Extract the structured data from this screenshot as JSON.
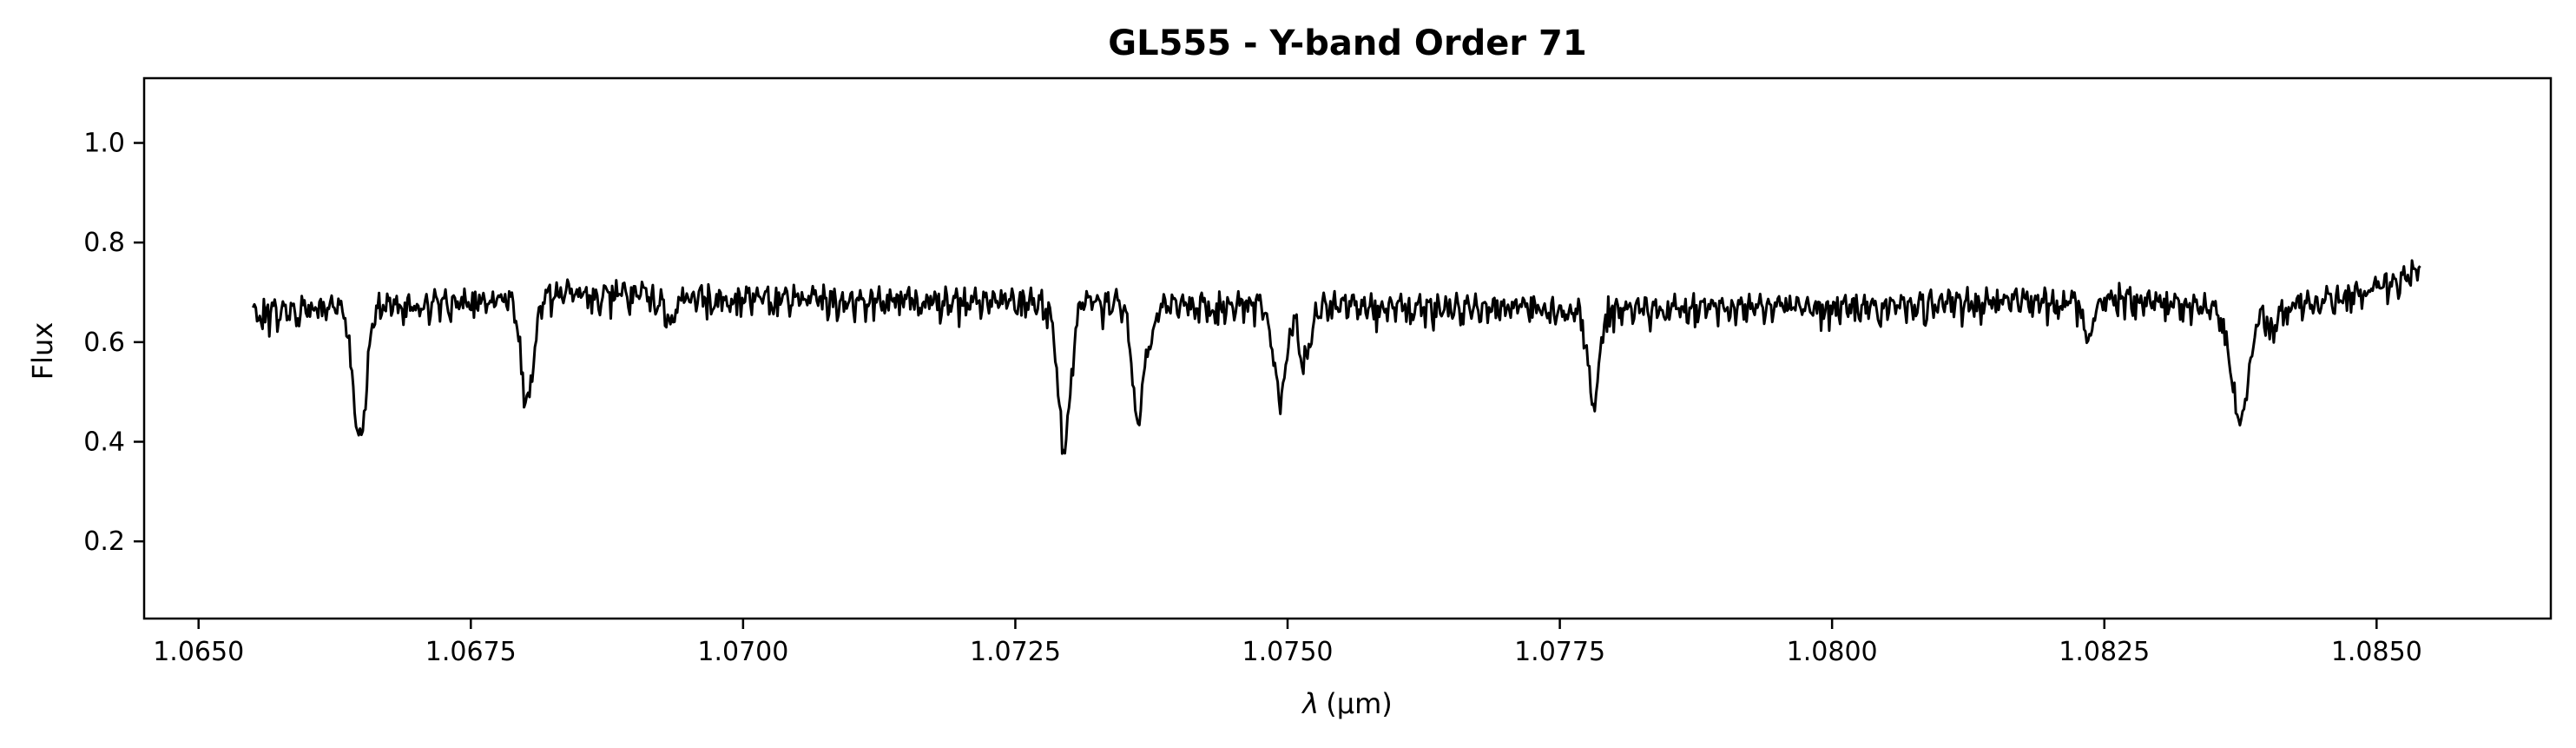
{
  "chart_data": {
    "type": "line",
    "title": "GL555 - Y-band Order 71",
    "xlabel_symbol": "λ",
    "xlabel_unit": "(μm)",
    "ylabel": "Flux",
    "xlim": [
      1.0645,
      1.0866
    ],
    "ylim": [
      0.045,
      1.13
    ],
    "xticks": [
      1.065,
      1.0675,
      1.07,
      1.0725,
      1.075,
      1.0775,
      1.08,
      1.0825,
      1.085
    ],
    "xtick_labels": [
      "1.0650",
      "1.0675",
      "1.0700",
      "1.0725",
      "1.0750",
      "1.0775",
      "1.0800",
      "1.0825",
      "1.0850"
    ],
    "yticks": [
      0.2,
      0.4,
      0.6,
      0.8,
      1.0
    ],
    "ytick_labels": [
      "0.2",
      "0.4",
      "0.6",
      "0.8",
      "1.0"
    ],
    "grid": false,
    "line_color": "#000000",
    "series": [
      {
        "x_range": [
          1.0655,
          1.0854
        ],
        "continuum_points": [
          [
            1.0655,
            0.67
          ],
          [
            1.0665,
            0.68
          ],
          [
            1.0675,
            0.69
          ],
          [
            1.0685,
            0.71
          ],
          [
            1.0695,
            0.7
          ],
          [
            1.0705,
            0.695
          ],
          [
            1.072,
            0.69
          ],
          [
            1.074,
            0.685
          ],
          [
            1.076,
            0.68
          ],
          [
            1.078,
            0.675
          ],
          [
            1.08,
            0.68
          ],
          [
            1.082,
            0.695
          ],
          [
            1.0825,
            0.7
          ],
          [
            1.0835,
            0.675
          ],
          [
            1.0845,
            0.69
          ],
          [
            1.085,
            0.72
          ],
          [
            1.0854,
            0.75
          ]
        ],
        "absorption_lines": [
          {
            "center": 1.06648,
            "depth": 0.27,
            "width": 6e-05
          },
          {
            "center": 1.06802,
            "depth": 0.21,
            "width": 6e-05
          },
          {
            "center": 1.06933,
            "depth": 0.05,
            "width": 5e-05
          },
          {
            "center": 1.07295,
            "depth": 0.28,
            "width": 6e-05
          },
          {
            "center": 1.07362,
            "depth": 0.23,
            "width": 5e-05
          },
          {
            "center": 1.07374,
            "depth": 0.07,
            "width": 5e-05
          },
          {
            "center": 1.07493,
            "depth": 0.18,
            "width": 6e-05
          },
          {
            "center": 1.07516,
            "depth": 0.11,
            "width": 5e-05
          },
          {
            "center": 1.07781,
            "depth": 0.19,
            "width": 5e-05
          },
          {
            "center": 1.08235,
            "depth": 0.08,
            "width": 5e-05
          },
          {
            "center": 1.08375,
            "depth": 0.22,
            "width": 8e-05
          },
          {
            "center": 1.08405,
            "depth": 0.05,
            "width": 5e-05
          }
        ]
      }
    ]
  }
}
